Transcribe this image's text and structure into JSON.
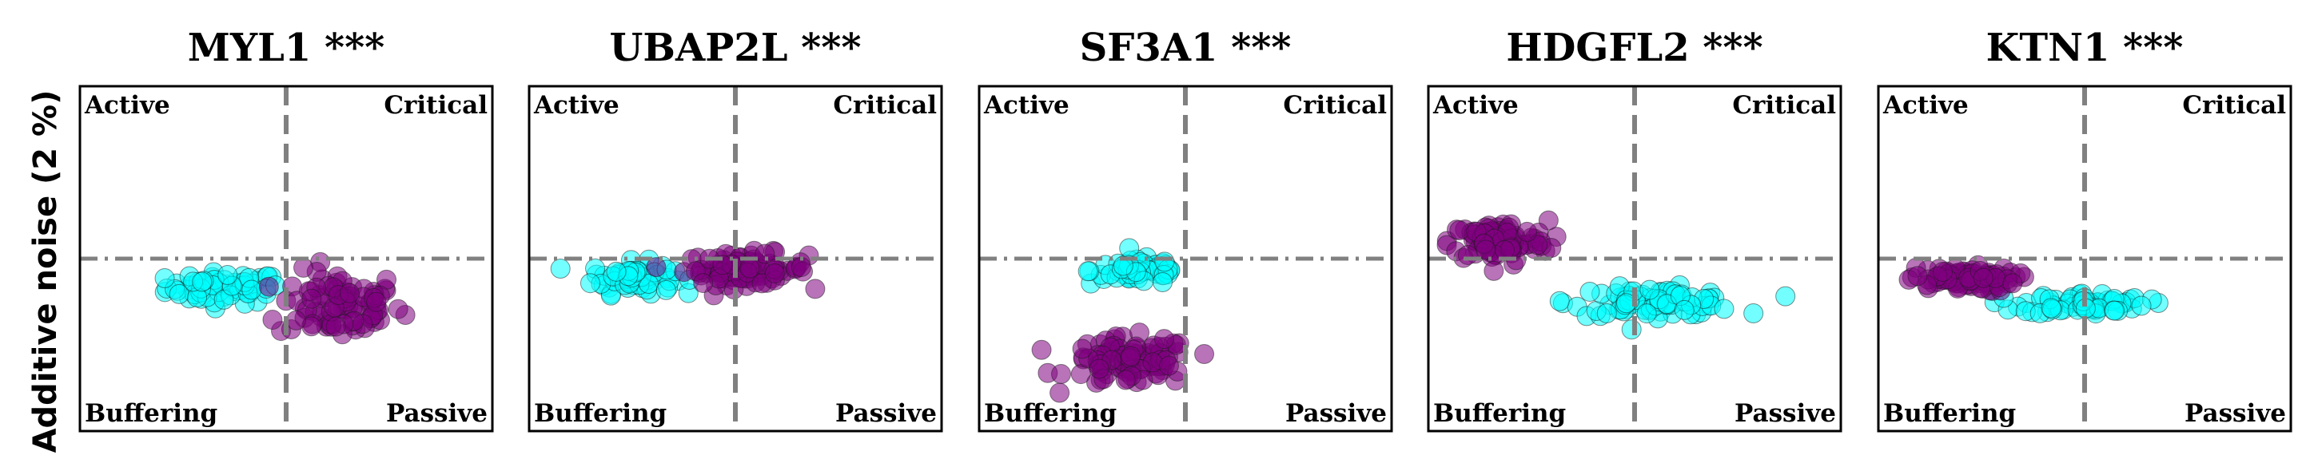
{
  "figure": {
    "ylabel": "Additive noise (2 %)"
  },
  "chart_data": [
    {
      "type": "scatter",
      "title": "MYL1 ***",
      "quadrant_labels": [
        "Active",
        "Critical",
        "Buffering",
        "Passive"
      ],
      "xlabel": "",
      "ylabel": "Additive noise (2 %)",
      "xlim": [
        -1,
        1
      ],
      "ylim": [
        -1,
        1
      ],
      "grid": false,
      "legend": "none",
      "series": [
        {
          "color": "#00ffff",
          "cx": -0.3,
          "cy": -0.17,
          "sx": 0.14,
          "sy": 0.045,
          "n": 70
        },
        {
          "color": "#800080",
          "cx": 0.26,
          "cy": -0.27,
          "sx": 0.15,
          "sy": 0.1,
          "n": 90
        }
      ]
    },
    {
      "type": "scatter",
      "title": "UBAP2L ***",
      "quadrant_labels": [
        "Active",
        "Critical",
        "Buffering",
        "Passive"
      ],
      "xlabel": "",
      "ylabel": "",
      "xlim": [
        -1,
        1
      ],
      "ylim": [
        -1,
        1
      ],
      "grid": false,
      "legend": "none",
      "series": [
        {
          "color": "#00ffff",
          "cx": -0.5,
          "cy": -0.11,
          "sx": 0.1,
          "sy": 0.045,
          "n": 70
        },
        {
          "color": "#800080",
          "cx": 0.05,
          "cy": -0.06,
          "sx": 0.15,
          "sy": 0.045,
          "n": 90
        }
      ]
    },
    {
      "type": "scatter",
      "title": "SF3A1 ***",
      "quadrant_labels": [
        "Active",
        "Critical",
        "Buffering",
        "Passive"
      ],
      "xlabel": "",
      "ylabel": "",
      "xlim": [
        -1,
        1
      ],
      "ylim": [
        -1,
        1
      ],
      "grid": false,
      "legend": "none",
      "series": [
        {
          "color": "#00ffff",
          "cx": -0.22,
          "cy": -0.07,
          "sx": 0.12,
          "sy": 0.04,
          "n": 60
        },
        {
          "color": "#800080",
          "cx": -0.27,
          "cy": -0.6,
          "sx": 0.15,
          "sy": 0.07,
          "n": 100
        }
      ]
    },
    {
      "type": "scatter",
      "title": "HDGFL2 ***",
      "quadrant_labels": [
        "Active",
        "Critical",
        "Buffering",
        "Passive"
      ],
      "xlabel": "",
      "ylabel": "",
      "xlim": [
        -1,
        1
      ],
      "ylim": [
        -1,
        1
      ],
      "grid": false,
      "legend": "none",
      "series": [
        {
          "color": "#00ffff",
          "cx": 0.1,
          "cy": -0.25,
          "sx": 0.2,
          "sy": 0.04,
          "n": 80
        },
        {
          "color": "#800080",
          "cx": -0.66,
          "cy": 0.1,
          "sx": 0.12,
          "sy": 0.06,
          "n": 100
        }
      ]
    },
    {
      "type": "scatter",
      "title": "KTN1 ***",
      "quadrant_labels": [
        "Active",
        "Critical",
        "Buffering",
        "Passive"
      ],
      "xlabel": "",
      "ylabel": "",
      "xlim": [
        -1,
        1
      ],
      "ylim": [
        -1,
        1
      ],
      "grid": false,
      "legend": "none",
      "series": [
        {
          "color": "#00ffff",
          "cx": 0.0,
          "cy": -0.26,
          "sx": 0.15,
          "sy": 0.03,
          "n": 70
        },
        {
          "color": "#800080",
          "cx": -0.6,
          "cy": -0.12,
          "sx": 0.13,
          "sy": 0.035,
          "n": 90
        }
      ]
    }
  ]
}
